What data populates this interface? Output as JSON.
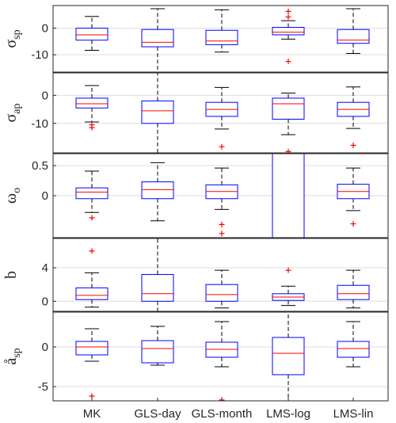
{
  "chart_data": {
    "type": "boxplot",
    "categories": [
      "MK",
      "GLS-day",
      "GLS-month",
      "LMS-log",
      "LMS-lin"
    ],
    "colors": {
      "box": "#0000ff",
      "median": "#ff0000",
      "outlier": "#ff0000",
      "whisker": "#000000",
      "grid": "#dedede",
      "axis": "#262626"
    },
    "panels": [
      {
        "ylabel_main": "σ",
        "ylabel_sub": "sp",
        "ylim": [
          -16.5,
          8.5
        ],
        "yticks": [
          0,
          -10
        ],
        "yticklabels": [
          "0",
          "-10"
        ],
        "boxes": [
          {
            "q1": -4.5,
            "median": -2.5,
            "q3": 0.0,
            "whisker_low": -8.3,
            "whisker_high": 4.4,
            "outliers": []
          },
          {
            "q1": -7.0,
            "median": -5.3,
            "q3": -0.5,
            "whisker_low": -16.5,
            "whisker_high": 7.3,
            "outliers": []
          },
          {
            "q1": -6.2,
            "median": -4.8,
            "q3": -0.8,
            "whisker_low": -9.0,
            "whisker_high": 6.9,
            "outliers": []
          },
          {
            "q1": -2.5,
            "median": -1.5,
            "q3": 0.3,
            "whisker_low": -4.1,
            "whisker_high": 2.8,
            "outliers": [
              6.3,
              4.2,
              -12.5
            ]
          },
          {
            "q1": -5.7,
            "median": -4.5,
            "q3": -0.5,
            "whisker_low": -9.5,
            "whisker_high": 7.3,
            "outliers": []
          }
        ]
      },
      {
        "ylabel_main": "σ",
        "ylabel_sub": "ap",
        "ylim": [
          -20.5,
          8
        ],
        "yticks": [
          0,
          -10
        ],
        "yticklabels": [
          "0",
          "-10"
        ],
        "boxes": [
          {
            "q1": -4.5,
            "median": -3.0,
            "q3": -1.0,
            "whisker_low": -9.5,
            "whisker_high": 3.5,
            "outliers": [
              -10.5,
              -11.5
            ]
          },
          {
            "q1": -10.0,
            "median": -5.5,
            "q3": -2.0,
            "whisker_low": -20.5,
            "whisker_high": 8.0,
            "outliers": []
          },
          {
            "q1": -7.5,
            "median": -5.0,
            "q3": -2.5,
            "whisker_low": -12.0,
            "whisker_high": 2.8,
            "outliers": [
              -18.3
            ]
          },
          {
            "q1": -8.5,
            "median": -3.0,
            "q3": -1.0,
            "whisker_low": -14.0,
            "whisker_high": 0.8,
            "outliers": [
              -20.0
            ]
          },
          {
            "q1": -7.5,
            "median": -5.0,
            "q3": -2.5,
            "whisker_low": -11.8,
            "whisker_high": 3.0,
            "outliers": [
              -17.8
            ]
          }
        ]
      },
      {
        "ylabel_main": "ω",
        "ylabel_sub": "o",
        "ylim": [
          -0.7,
          0.7
        ],
        "yticks": [
          0.5,
          0
        ],
        "yticklabels": [
          "0.5",
          "0"
        ],
        "boxes": [
          {
            "q1": -0.05,
            "median": 0.06,
            "q3": 0.13,
            "whisker_low": -0.28,
            "whisker_high": 0.41,
            "outliers": [
              -0.37
            ]
          },
          {
            "q1": -0.05,
            "median": 0.1,
            "q3": 0.23,
            "whisker_low": -0.42,
            "whisker_high": 0.55,
            "outliers": []
          },
          {
            "q1": -0.05,
            "median": 0.07,
            "q3": 0.18,
            "whisker_low": -0.23,
            "whisker_high": 0.46,
            "outliers": [
              -0.48,
              -0.63
            ]
          },
          {
            "q1": -0.7,
            "median": null,
            "q3": 0.7,
            "whisker_low": -0.7,
            "whisker_high": 0.7,
            "outliers": []
          },
          {
            "q1": -0.05,
            "median": 0.07,
            "q3": 0.19,
            "whisker_low": -0.25,
            "whisker_high": 0.46,
            "outliers": [
              -0.47
            ]
          }
        ]
      },
      {
        "ylabel_main": "b",
        "ylabel_sub": "",
        "ylim": [
          -1.2,
          7.5
        ],
        "yticks": [
          4,
          0
        ],
        "yticklabels": [
          "4",
          "0"
        ],
        "boxes": [
          {
            "q1": 0.2,
            "median": 0.7,
            "q3": 1.6,
            "whisker_low": -0.7,
            "whisker_high": 3.4,
            "outliers": [
              6.0
            ]
          },
          {
            "q1": 0.0,
            "median": 0.9,
            "q3": 3.2,
            "whisker_low": -1.2,
            "whisker_high": 7.5,
            "outliers": []
          },
          {
            "q1": 0.0,
            "median": 0.8,
            "q3": 2.0,
            "whisker_low": -0.8,
            "whisker_high": 3.7,
            "outliers": []
          },
          {
            "q1": 0.1,
            "median": 0.5,
            "q3": 0.9,
            "whisker_low": -0.5,
            "whisker_high": 1.8,
            "outliers": [
              3.7
            ]
          },
          {
            "q1": 0.2,
            "median": 0.9,
            "q3": 1.9,
            "whisker_low": -0.8,
            "whisker_high": 3.7,
            "outliers": []
          }
        ]
      },
      {
        "ylabel_main": "å",
        "ylabel_sub": "sp",
        "ylim": [
          -6.8,
          4.4
        ],
        "yticks": [
          0,
          -5
        ],
        "yticklabels": [
          "0",
          "-5"
        ],
        "boxes": [
          {
            "q1": -1.0,
            "median": 0.0,
            "q3": 0.7,
            "whisker_low": -1.8,
            "whisker_high": 2.3,
            "outliers": [
              -6.2
            ]
          },
          {
            "q1": -2.0,
            "median": -0.2,
            "q3": 0.8,
            "whisker_low": -2.3,
            "whisker_high": 2.6,
            "outliers": []
          },
          {
            "q1": -1.3,
            "median": -0.3,
            "q3": 0.6,
            "whisker_low": -2.5,
            "whisker_high": 3.2,
            "outliers": [
              -6.7
            ]
          },
          {
            "q1": -3.5,
            "median": -0.8,
            "q3": 1.2,
            "whisker_low": -6.8,
            "whisker_high": 4.4,
            "outliers": []
          },
          {
            "q1": -1.3,
            "median": -0.2,
            "q3": 0.7,
            "whisker_low": -2.5,
            "whisker_high": 3.2,
            "outliers": []
          }
        ]
      }
    ]
  }
}
